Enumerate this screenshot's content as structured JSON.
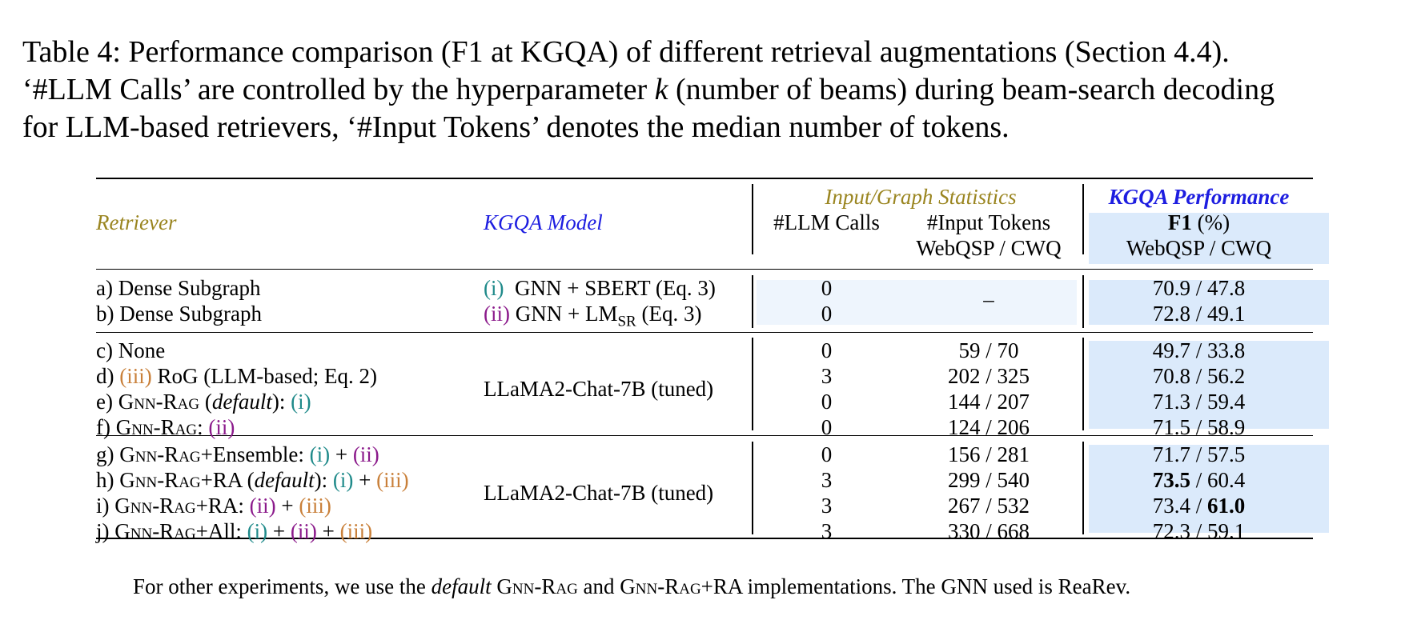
{
  "caption": {
    "line1": "Table 4: Performance comparison (F1 at KGQA) of different retrieval augmentations (Section 4.4).",
    "line2_a": "‘#LLM Calls’ are controlled by the hyperparameter ",
    "line2_k": "k",
    "line2_b": " (number of beams) during beam-search decoding",
    "line3": "for LLM-based retrievers, ‘#Input Tokens’ denotes the median number of tokens."
  },
  "header": {
    "retriever": "Retriever",
    "kgqa_model": "KGQA Model",
    "input_graph_stats": "Input/Graph Statistics",
    "kgqa_performance": "KGQA Performance",
    "llm_calls": "#LLM Calls",
    "input_tokens": "#Input Tokens",
    "input_tokens_sub": "WebQSP / CWQ",
    "f1_bold": "F1",
    "f1_rest": " (%)",
    "f1_sub": "WebQSP / CWQ"
  },
  "group1": {
    "rows": [
      {
        "retriever": "a) Dense Subgraph",
        "model_tag": "(i)",
        "model": "GNN + SBERT (Eq. 3)",
        "calls": "0",
        "f1": "70.9 / 47.8"
      },
      {
        "retriever": "b) Dense Subgraph",
        "model_tag": "(ii)",
        "model_pre": "GNN + LM",
        "model_sub": "SR",
        "model_post": " (Eq. 3)",
        "calls": "0",
        "f1": "72.8 / 49.1"
      }
    ],
    "tokens": "–"
  },
  "group2": {
    "model": "LLaMA2-Chat-7B (tuned)",
    "rows": [
      {
        "calls": "0",
        "tokens": "59 / 70",
        "f1": "49.7 / 33.8"
      },
      {
        "calls": "3",
        "tokens": "202 / 325",
        "f1": "70.8 / 56.2"
      },
      {
        "calls": "0",
        "tokens": "144 / 207",
        "f1": "71.3 / 59.4"
      },
      {
        "calls": "0",
        "tokens": "124 / 206",
        "f1": "71.5 / 58.9"
      }
    ],
    "r_c": "c) None",
    "r_d_pre": "d) ",
    "r_d_tag": "(iii)",
    "r_d_post": " RoG (LLM-based; Eq. 2)",
    "r_e_pre": "e) ",
    "r_e_name": "Gnn-Rag",
    "r_e_mid": " (",
    "r_e_default": "default",
    "r_e_end": "): ",
    "r_e_tag": "(i)",
    "r_f_pre": "f) ",
    "r_f_name": "Gnn-Rag",
    "r_f_mid": ": ",
    "r_f_tag": "(ii)"
  },
  "group3": {
    "model": "LLaMA2-Chat-7B (tuned)",
    "rows": [
      {
        "calls": "0",
        "tokens": "156 / 281",
        "f1": "71.7 / 57.5"
      },
      {
        "calls": "3",
        "tokens": "299 / 540",
        "f1_bold": "73.5",
        "f1_rest": " / 60.4"
      },
      {
        "calls": "3",
        "tokens": "267 / 532",
        "f1_pre": "73.4 / ",
        "f1_bold": "61.0"
      },
      {
        "calls": "3",
        "tokens": "330 / 668",
        "f1": "72.3 / 59.1"
      }
    ],
    "r_g_pre": "g) ",
    "r_g_name": "Gnn-Rag",
    "r_g_mid": "+Ensemble: ",
    "r_g_t1": "(i)",
    "r_g_plus": " + ",
    "r_g_t2": "(ii)",
    "r_h_pre": "h) ",
    "r_h_name": "Gnn-Rag",
    "r_h_mid": "+RA (",
    "r_h_default": "default",
    "r_h_end": "): ",
    "r_h_t1": "(i)",
    "r_h_plus": " + ",
    "r_h_t2": "(iii)",
    "r_i_pre": "i) ",
    "r_i_name": "Gnn-Rag",
    "r_i_mid": "+RA: ",
    "r_i_t1": "(ii)",
    "r_i_plus": " + ",
    "r_i_t2": "(iii)",
    "r_j_pre": "j) ",
    "r_j_name": "Gnn-Rag",
    "r_j_mid": "+All: ",
    "r_j_t1": "(i)",
    "r_j_plus1": " + ",
    "r_j_t2": "(ii)",
    "r_j_plus2": " + ",
    "r_j_t3": "(iii)"
  },
  "footnote": {
    "a": "For other experiments, we use the ",
    "default": "default",
    "b": " ",
    "gnnrag": "Gnn-Rag",
    "c": " and ",
    "gnnrag2": "Gnn-Rag",
    "d": "+RA implementations. The GNN used is ReaRev."
  }
}
